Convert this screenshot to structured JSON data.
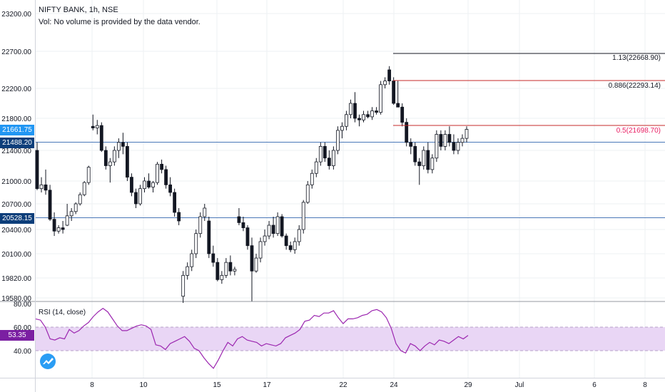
{
  "header": {
    "symbol_line": "NIFTY BANK, 1h, NSE",
    "volume_note": "Vol: No volume is provided by the data vendor."
  },
  "price_axis": {
    "labels": [
      "23200.00",
      "22700.00",
      "22200.00",
      "21800.00",
      "21400.00",
      "21000.00",
      "20700.00",
      "20400.00",
      "20100.00",
      "19820.00",
      "19580.00"
    ]
  },
  "price_tags": [
    {
      "text": "21661.75",
      "color": "#2196f3"
    },
    {
      "text": "21488.20",
      "color": "#0d3e7a"
    },
    {
      "text": "20528.15",
      "color": "#0d3e7a"
    }
  ],
  "fib_levels": [
    {
      "text": "1.13(22668.90)",
      "color": "#131722"
    },
    {
      "text": "0.886(22293.14)",
      "color": "#131722"
    },
    {
      "text": "0.5(21698.70)",
      "color": "#e91e63"
    }
  ],
  "rsi": {
    "title": "RSI (14, close)",
    "axis_labels": [
      "80.00",
      "60.00",
      "40.00"
    ],
    "value_tag": "53.35",
    "tag_color": "#7b1fa2",
    "band_color": "#e9d6f5",
    "line_color": "#9c27b0",
    "values": [
      67,
      66,
      60,
      50,
      49,
      51,
      50,
      58,
      55,
      57,
      61,
      64,
      69,
      73,
      76,
      73,
      67,
      61,
      57,
      57,
      59,
      61,
      62,
      61,
      58,
      45,
      44,
      41,
      46,
      48,
      50,
      52,
      48,
      42,
      40,
      34,
      29,
      25,
      32,
      40,
      47,
      44,
      50,
      52,
      49,
      48,
      47,
      44,
      46,
      45,
      44,
      46,
      51,
      53,
      55,
      58,
      65,
      66,
      70,
      69,
      72,
      72,
      74,
      68,
      63,
      67,
      67,
      68,
      70,
      71,
      74,
      75,
      73,
      68,
      59,
      46,
      40,
      38,
      46,
      44,
      40,
      44,
      47,
      45,
      49,
      48,
      46,
      49,
      52,
      50,
      53
    ]
  },
  "time_axis": {
    "labels": [
      "8",
      "10",
      "15",
      "17",
      "22",
      "24",
      "29",
      "Jul",
      "6",
      "8"
    ]
  },
  "chart_data": {
    "type": "candlestick",
    "title": "NIFTY BANK, 1h, NSE",
    "ylim": [
      19520,
      23300
    ],
    "candles": [
      {
        "o": 21400,
        "h": 21500,
        "l": 20880,
        "c": 20900
      },
      {
        "o": 20900,
        "h": 21050,
        "l": 20850,
        "c": 20950
      },
      {
        "o": 20950,
        "h": 21150,
        "l": 20820,
        "c": 20880
      },
      {
        "o": 20880,
        "h": 20950,
        "l": 20500,
        "c": 20520
      },
      {
        "o": 20520,
        "h": 20600,
        "l": 20320,
        "c": 20380
      },
      {
        "o": 20380,
        "h": 20450,
        "l": 20350,
        "c": 20420
      },
      {
        "o": 20420,
        "h": 20500,
        "l": 20350,
        "c": 20400
      },
      {
        "o": 20450,
        "h": 20700,
        "l": 20440,
        "c": 20560
      },
      {
        "o": 20560,
        "h": 20650,
        "l": 20500,
        "c": 20610
      },
      {
        "o": 20610,
        "h": 20720,
        "l": 20580,
        "c": 20700
      },
      {
        "o": 20700,
        "h": 20850,
        "l": 20680,
        "c": 20820
      },
      {
        "o": 20820,
        "h": 21000,
        "l": 20800,
        "c": 20980
      },
      {
        "o": 20980,
        "h": 21200,
        "l": 20950,
        "c": 21180
      },
      {
        "o": 21700,
        "h": 21850,
        "l": 21650,
        "c": 21680
      },
      {
        "o": 21680,
        "h": 21780,
        "l": 21600,
        "c": 21710
      },
      {
        "o": 21710,
        "h": 21750,
        "l": 21380,
        "c": 21400
      },
      {
        "o": 21400,
        "h": 21450,
        "l": 21150,
        "c": 21200
      },
      {
        "o": 21200,
        "h": 21300,
        "l": 20980,
        "c": 21250
      },
      {
        "o": 21250,
        "h": 21450,
        "l": 21200,
        "c": 21400
      },
      {
        "o": 21400,
        "h": 21550,
        "l": 21300,
        "c": 21500
      },
      {
        "o": 21500,
        "h": 21620,
        "l": 21350,
        "c": 21450
      },
      {
        "o": 21450,
        "h": 21500,
        "l": 21000,
        "c": 21050
      },
      {
        "o": 21050,
        "h": 21100,
        "l": 20800,
        "c": 20850
      },
      {
        "o": 20850,
        "h": 20900,
        "l": 20650,
        "c": 20700
      },
      {
        "o": 20700,
        "h": 20950,
        "l": 20680,
        "c": 20900
      },
      {
        "o": 20900,
        "h": 21050,
        "l": 20850,
        "c": 21000
      },
      {
        "o": 21000,
        "h": 21100,
        "l": 20900,
        "c": 20920
      },
      {
        "o": 20920,
        "h": 21000,
        "l": 20850,
        "c": 20980
      },
      {
        "o": 20980,
        "h": 21250,
        "l": 20950,
        "c": 21220
      },
      {
        "o": 21220,
        "h": 21280,
        "l": 21100,
        "c": 21150
      },
      {
        "o": 21150,
        "h": 21200,
        "l": 20900,
        "c": 20950
      },
      {
        "o": 20950,
        "h": 21050,
        "l": 20800,
        "c": 20850
      },
      {
        "o": 20850,
        "h": 20900,
        "l": 20550,
        "c": 20600
      },
      {
        "o": 20600,
        "h": 20650,
        "l": 20450,
        "c": 20500
      },
      {
        "o": 19600,
        "h": 19900,
        "l": 19520,
        "c": 19850
      },
      {
        "o": 19850,
        "h": 20000,
        "l": 19800,
        "c": 19950
      },
      {
        "o": 19950,
        "h": 20150,
        "l": 19900,
        "c": 20100
      },
      {
        "o": 20100,
        "h": 20400,
        "l": 20050,
        "c": 20350
      },
      {
        "o": 20350,
        "h": 20600,
        "l": 20300,
        "c": 20550
      },
      {
        "o": 20550,
        "h": 20700,
        "l": 20500,
        "c": 20650
      },
      {
        "o": 20500,
        "h": 20550,
        "l": 20050,
        "c": 20100
      },
      {
        "o": 20100,
        "h": 20200,
        "l": 19950,
        "c": 20000
      },
      {
        "o": 20000,
        "h": 20050,
        "l": 19780,
        "c": 19800
      },
      {
        "o": 19800,
        "h": 19900,
        "l": 19750,
        "c": 19850
      },
      {
        "o": 19850,
        "h": 20050,
        "l": 19820,
        "c": 20000
      },
      {
        "o": 20000,
        "h": 20080,
        "l": 19850,
        "c": 19900
      },
      {
        "o": 19900,
        "h": 19950,
        "l": 19850,
        "c": 19920
      },
      {
        "o": 20550,
        "h": 20650,
        "l": 20450,
        "c": 20480
      },
      {
        "o": 20480,
        "h": 20550,
        "l": 20380,
        "c": 20420
      },
      {
        "o": 20420,
        "h": 20450,
        "l": 20150,
        "c": 20200
      },
      {
        "o": 20200,
        "h": 20300,
        "l": 19540,
        "c": 19900
      },
      {
        "o": 19900,
        "h": 20100,
        "l": 19880,
        "c": 20050
      },
      {
        "o": 20050,
        "h": 20300,
        "l": 20000,
        "c": 20250
      },
      {
        "o": 20250,
        "h": 20400,
        "l": 20200,
        "c": 20320
      },
      {
        "o": 20320,
        "h": 20500,
        "l": 20280,
        "c": 20450
      },
      {
        "o": 20450,
        "h": 20550,
        "l": 20300,
        "c": 20350
      },
      {
        "o": 20350,
        "h": 20600,
        "l": 20320,
        "c": 20550
      },
      {
        "o": 20550,
        "h": 20580,
        "l": 20300,
        "c": 20320
      },
      {
        "o": 20320,
        "h": 20350,
        "l": 20150,
        "c": 20200
      },
      {
        "o": 20200,
        "h": 20250,
        "l": 20120,
        "c": 20150
      },
      {
        "o": 20150,
        "h": 20300,
        "l": 20100,
        "c": 20250
      },
      {
        "o": 20250,
        "h": 20450,
        "l": 20200,
        "c": 20400
      },
      {
        "o": 20400,
        "h": 20750,
        "l": 20350,
        "c": 20720
      },
      {
        "o": 20720,
        "h": 21000,
        "l": 20700,
        "c": 20950
      },
      {
        "o": 20950,
        "h": 21150,
        "l": 20900,
        "c": 21100
      },
      {
        "o": 21100,
        "h": 21300,
        "l": 21050,
        "c": 21250
      },
      {
        "o": 21250,
        "h": 21500,
        "l": 21200,
        "c": 21450
      },
      {
        "o": 21450,
        "h": 21500,
        "l": 21250,
        "c": 21300
      },
      {
        "o": 21300,
        "h": 21400,
        "l": 21150,
        "c": 21200
      },
      {
        "o": 21200,
        "h": 21450,
        "l": 21150,
        "c": 21400
      },
      {
        "o": 21400,
        "h": 21700,
        "l": 21350,
        "c": 21650
      },
      {
        "o": 21650,
        "h": 21750,
        "l": 21550,
        "c": 21700
      },
      {
        "o": 21700,
        "h": 21900,
        "l": 21650,
        "c": 21850
      },
      {
        "o": 21850,
        "h": 22050,
        "l": 21800,
        "c": 22000
      },
      {
        "o": 22000,
        "h": 22150,
        "l": 21750,
        "c": 21800
      },
      {
        "o": 21800,
        "h": 21850,
        "l": 21700,
        "c": 21780
      },
      {
        "o": 21780,
        "h": 21900,
        "l": 21750,
        "c": 21850
      },
      {
        "o": 21850,
        "h": 21900,
        "l": 21800,
        "c": 21820
      },
      {
        "o": 21820,
        "h": 21950,
        "l": 21780,
        "c": 21900
      },
      {
        "o": 21900,
        "h": 21950,
        "l": 21850,
        "c": 21880
      },
      {
        "o": 21880,
        "h": 22300,
        "l": 21850,
        "c": 22250
      },
      {
        "o": 22250,
        "h": 22350,
        "l": 22200,
        "c": 22300
      },
      {
        "o": 22450,
        "h": 22500,
        "l": 22250,
        "c": 22300
      },
      {
        "o": 22300,
        "h": 22350,
        "l": 21980,
        "c": 22000
      },
      {
        "o": 22000,
        "h": 22300,
        "l": 21950,
        "c": 21950
      },
      {
        "o": 21950,
        "h": 22000,
        "l": 21700,
        "c": 21750
      },
      {
        "o": 21750,
        "h": 21800,
        "l": 21450,
        "c": 21500
      },
      {
        "o": 21500,
        "h": 21550,
        "l": 21350,
        "c": 21450
      },
      {
        "o": 21450,
        "h": 21500,
        "l": 21200,
        "c": 21250
      },
      {
        "o": 21250,
        "h": 21300,
        "l": 20950,
        "c": 21200
      },
      {
        "o": 21200,
        "h": 21450,
        "l": 21150,
        "c": 21400
      },
      {
        "o": 21400,
        "h": 21500,
        "l": 21100,
        "c": 21150
      },
      {
        "o": 21150,
        "h": 21350,
        "l": 21100,
        "c": 21300
      },
      {
        "o": 21300,
        "h": 21650,
        "l": 21250,
        "c": 21600
      },
      {
        "o": 21600,
        "h": 21650,
        "l": 21400,
        "c": 21450
      },
      {
        "o": 21450,
        "h": 21650,
        "l": 21400,
        "c": 21600
      },
      {
        "o": 21600,
        "h": 21700,
        "l": 21450,
        "c": 21500
      },
      {
        "o": 21500,
        "h": 21600,
        "l": 21350,
        "c": 21400
      },
      {
        "o": 21400,
        "h": 21550,
        "l": 21350,
        "c": 21500
      },
      {
        "o": 21500,
        "h": 21600,
        "l": 21450,
        "c": 21550
      },
      {
        "o": 21550,
        "h": 21700,
        "l": 21500,
        "c": 21662
      }
    ]
  }
}
